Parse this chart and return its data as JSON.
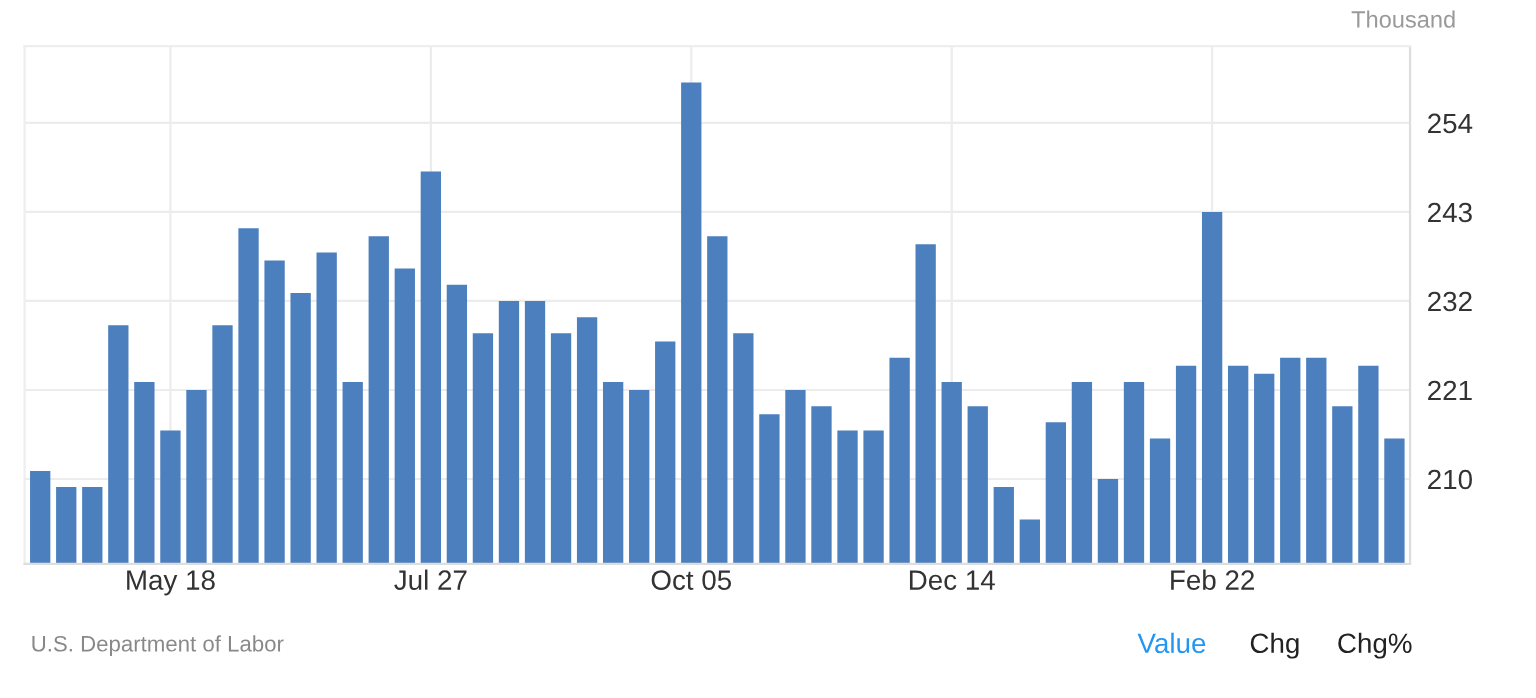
{
  "chart_data": {
    "type": "bar",
    "ylabel": "Thousand",
    "categories": [
      null,
      null,
      null,
      null,
      null,
      "May 18",
      null,
      null,
      null,
      null,
      null,
      null,
      null,
      null,
      null,
      "Jul 27",
      null,
      null,
      null,
      null,
      null,
      null,
      null,
      null,
      null,
      "Oct 05",
      null,
      null,
      null,
      null,
      null,
      null,
      null,
      null,
      null,
      "Dec 14",
      null,
      null,
      null,
      null,
      null,
      null,
      null,
      null,
      null,
      "Feb 22",
      null,
      null,
      null,
      null,
      null,
      null,
      null
    ],
    "series": [
      {
        "color": "#4b7fbe",
        "values": [
          211,
          209,
          209,
          229,
          222,
          216,
          221,
          229,
          241,
          237,
          233,
          238,
          222,
          240,
          236,
          248,
          234,
          228,
          232,
          232,
          228,
          230,
          222,
          221,
          227,
          259,
          240,
          228,
          218,
          221,
          219,
          216,
          216,
          225,
          239,
          222,
          219,
          209,
          205,
          217,
          222,
          210,
          222,
          215,
          224,
          243,
          224,
          223,
          225,
          225,
          219,
          224,
          215
        ]
      }
    ],
    "ylim": [
      199.5,
      263.5
    ],
    "yticks": [
      210,
      221,
      232,
      243,
      254
    ],
    "grid": true,
    "annotations": [
      "U.S. Department of Labor",
      "Value",
      "Chg",
      "Chg%"
    ]
  }
}
